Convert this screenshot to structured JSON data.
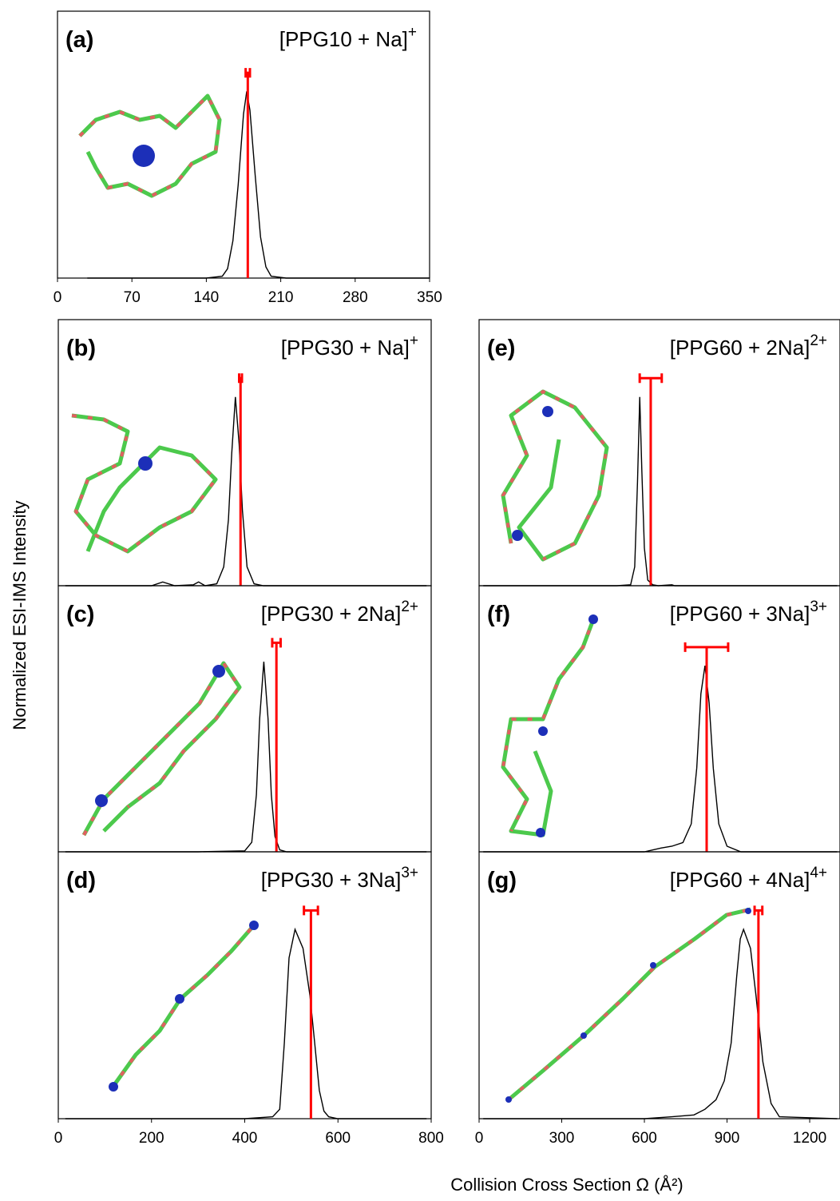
{
  "y_label": "Normalized ESI-IMS Intensity",
  "x_label": "Collision Cross Section Ω (Å²)",
  "chart_data": [
    {
      "type": "line",
      "panel": "(a)",
      "title": "[PPG10 + Na]",
      "title_superscript": "+",
      "color": "#000000",
      "marker_color": "#ff0000",
      "x": [
        28,
        140,
        155,
        160,
        165,
        170,
        175,
        178,
        181,
        186,
        191,
        196,
        201,
        215,
        350
      ],
      "values": [
        0,
        0,
        0.01,
        0.05,
        0.2,
        0.5,
        0.88,
        1,
        0.9,
        0.55,
        0.22,
        0.06,
        0.01,
        0,
        0
      ],
      "ccs": 179,
      "ccs_error": 2,
      "xlim": [
        0,
        350
      ],
      "ylim": [
        0,
        1.43
      ],
      "xticks": [
        0,
        70,
        140,
        210,
        280,
        350
      ]
    },
    {
      "type": "line",
      "panel": "(b)",
      "title": "[PPG30 + Na]",
      "title_superscript": "+",
      "color": "#000000",
      "marker_color": "#ff0000",
      "x": [
        15,
        200,
        224,
        250,
        290,
        301,
        315,
        340,
        355,
        365,
        372,
        380,
        388,
        395,
        405,
        420,
        440,
        790
      ],
      "values": [
        0,
        0,
        0.02,
        0,
        0.005,
        0.02,
        0,
        0.01,
        0.1,
        0.35,
        0.7,
        1,
        0.75,
        0.4,
        0.1,
        0.01,
        0,
        0
      ],
      "ccs": 391,
      "ccs_error": 3,
      "xlim": [
        0,
        800
      ],
      "ylim": [
        0,
        1.41
      ]
    },
    {
      "type": "line",
      "panel": "(c)",
      "title": "[PPG30 + 2Na]",
      "title_superscript": "2+",
      "color": "#000000",
      "marker_color": "#ff0000",
      "x": [
        15,
        300,
        400,
        415,
        425,
        432,
        441,
        450,
        457,
        465,
        475,
        490,
        790
      ],
      "values": [
        0,
        0,
        0.005,
        0.05,
        0.3,
        0.7,
        1,
        0.7,
        0.3,
        0.08,
        0.01,
        0,
        0
      ],
      "ccs": 468,
      "ccs_error": 9,
      "xlim": [
        0,
        800
      ],
      "ylim": [
        0,
        1.4
      ]
    },
    {
      "type": "line",
      "panel": "(d)",
      "title": "[PPG30 + 3Na]",
      "title_superscript": "3+",
      "color": "#000000",
      "marker_color": "#ff0000",
      "x": [
        15,
        400,
        460,
        475,
        485,
        495,
        508,
        525,
        540,
        550,
        560,
        570,
        580,
        600,
        790
      ],
      "values": [
        0,
        0,
        0.01,
        0.05,
        0.4,
        0.85,
        1,
        0.9,
        0.65,
        0.4,
        0.15,
        0.04,
        0.01,
        0,
        0
      ],
      "ccs": 542,
      "ccs_error": 15,
      "xlim": [
        0,
        800
      ],
      "ylim": [
        0,
        1.41
      ],
      "xticks": [
        0,
        200,
        400,
        600,
        800
      ]
    },
    {
      "type": "line",
      "panel": "(e)",
      "title": "[PPG60 + 2Na]",
      "title_superscript": "2+",
      "color": "#000000",
      "marker_color": "#ff0000",
      "x": [
        15,
        500,
        550,
        565,
        575,
        583,
        591,
        600,
        612,
        630,
        650,
        700,
        710,
        720,
        1300
      ],
      "values": [
        0,
        0,
        0.005,
        0.1,
        0.55,
        1,
        0.6,
        0.2,
        0.03,
        0.005,
        0,
        0.005,
        0,
        0,
        0
      ],
      "ccs": 623,
      "ccs_error": 40,
      "xlim": [
        0,
        1310
      ],
      "ylim": [
        0,
        1.41
      ]
    },
    {
      "type": "line",
      "panel": "(f)",
      "title": "[PPG60 + 3Na]",
      "title_superscript": "3+",
      "color": "#000000",
      "marker_color": "#ff0000",
      "x": [
        15,
        600,
        660,
        700,
        740,
        770,
        790,
        805,
        820,
        835,
        850,
        870,
        900,
        950,
        1300
      ],
      "values": [
        0,
        0,
        0.02,
        0.03,
        0.05,
        0.15,
        0.45,
        0.85,
        1,
        0.8,
        0.45,
        0.15,
        0.03,
        0,
        0
      ],
      "ccs": 826,
      "ccs_error": 78,
      "xlim": [
        0,
        1310
      ],
      "ylim": [
        0,
        1.43
      ]
    },
    {
      "type": "line",
      "panel": "(g)",
      "title": "[PPG60 + 4Na]",
      "title_superscript": "4+",
      "color": "#000000",
      "marker_color": "#ff0000",
      "x": [
        15,
        600,
        700,
        780,
        820,
        860,
        890,
        915,
        935,
        948,
        960,
        985,
        1005,
        1030,
        1060,
        1090,
        1300
      ],
      "values": [
        0,
        0,
        0.01,
        0.02,
        0.05,
        0.1,
        0.2,
        0.4,
        0.75,
        0.95,
        1,
        0.9,
        0.65,
        0.3,
        0.08,
        0.01,
        0
      ],
      "ccs": 1014,
      "ccs_error": 14,
      "xlim": [
        0,
        1310
      ],
      "ylim": [
        0,
        1.41
      ],
      "xticks": [
        0,
        300,
        600,
        900,
        1200
      ]
    }
  ]
}
